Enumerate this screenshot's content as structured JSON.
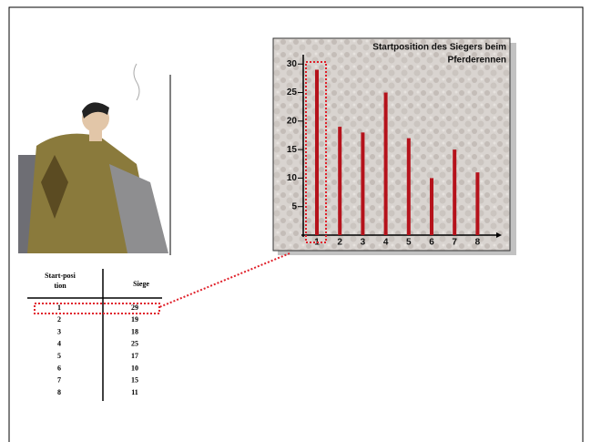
{
  "chart_data": {
    "type": "bar",
    "title": [
      "Startposition des Siegers beim",
      "Pferderennen"
    ],
    "categories": [
      "1",
      "2",
      "3",
      "4",
      "5",
      "6",
      "7",
      "8"
    ],
    "values": [
      29,
      19,
      18,
      25,
      17,
      10,
      15,
      11
    ],
    "color": "#b5121b",
    "ylim": [
      0,
      31
    ],
    "yticks": [
      5,
      10,
      15,
      20,
      25,
      30
    ]
  },
  "table": {
    "header": [
      "Start-position",
      "Siege"
    ],
    "rows": [
      [
        "1",
        "29"
      ],
      [
        "2",
        "19"
      ],
      [
        "3",
        "18"
      ],
      [
        "4",
        "25"
      ],
      [
        "5",
        "17"
      ],
      [
        "6",
        "10"
      ],
      [
        "7",
        "15"
      ],
      [
        "8",
        "11"
      ]
    ]
  }
}
